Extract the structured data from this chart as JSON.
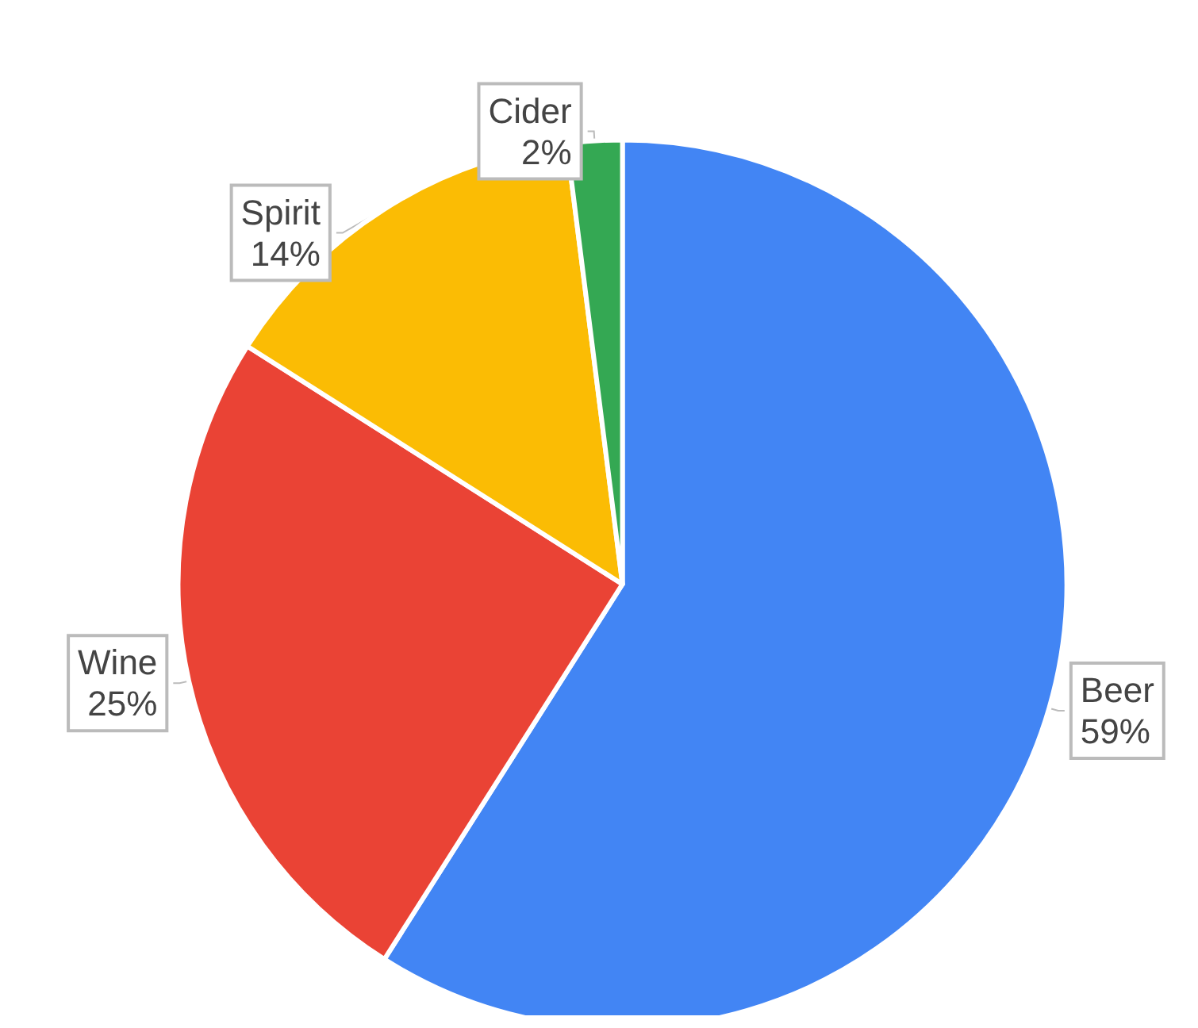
{
  "chart_data": {
    "type": "pie",
    "categories": [
      "Beer",
      "Wine",
      "Spirit",
      "Cider"
    ],
    "values": [
      59,
      25,
      14,
      2
    ],
    "colors": [
      "#4285f4",
      "#ea4335",
      "#fbbc04",
      "#34a853"
    ],
    "value_labels": [
      "59%",
      "25%",
      "14%",
      "2%"
    ]
  }
}
